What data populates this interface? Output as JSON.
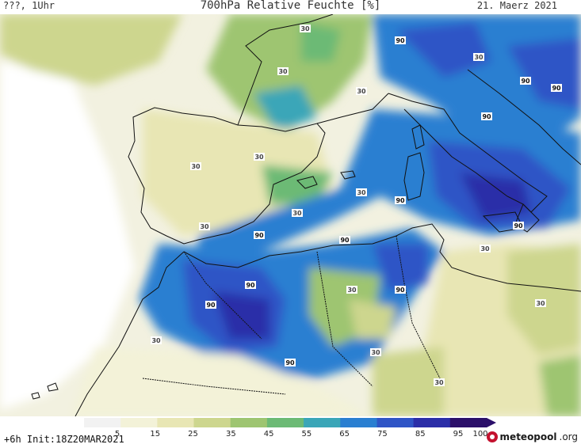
{
  "header": {
    "left": "???, 1Uhr",
    "title": "700hPa Relative Feuchte [%]",
    "date": "21. Maerz 2021"
  },
  "legend": {
    "ticks": [
      "5",
      "15",
      "25",
      "35",
      "45",
      "55",
      "65",
      "75",
      "85",
      "95",
      "100"
    ],
    "colors": [
      "#f2f2f2",
      "#f3f2d8",
      "#e8e6b4",
      "#cdd68e",
      "#9ec571",
      "#6cba75",
      "#3aa6b8",
      "#2a7fd1",
      "#2f55c6",
      "#2b2ea8",
      "#2b0f6a"
    ]
  },
  "contour_labels": {
    "thirty": "30",
    "ninety": "90"
  },
  "footer": {
    "init": "+6h  Init:18Z20MAR2021",
    "brand": "meteopool",
    "brand_suffix": ".org"
  }
}
